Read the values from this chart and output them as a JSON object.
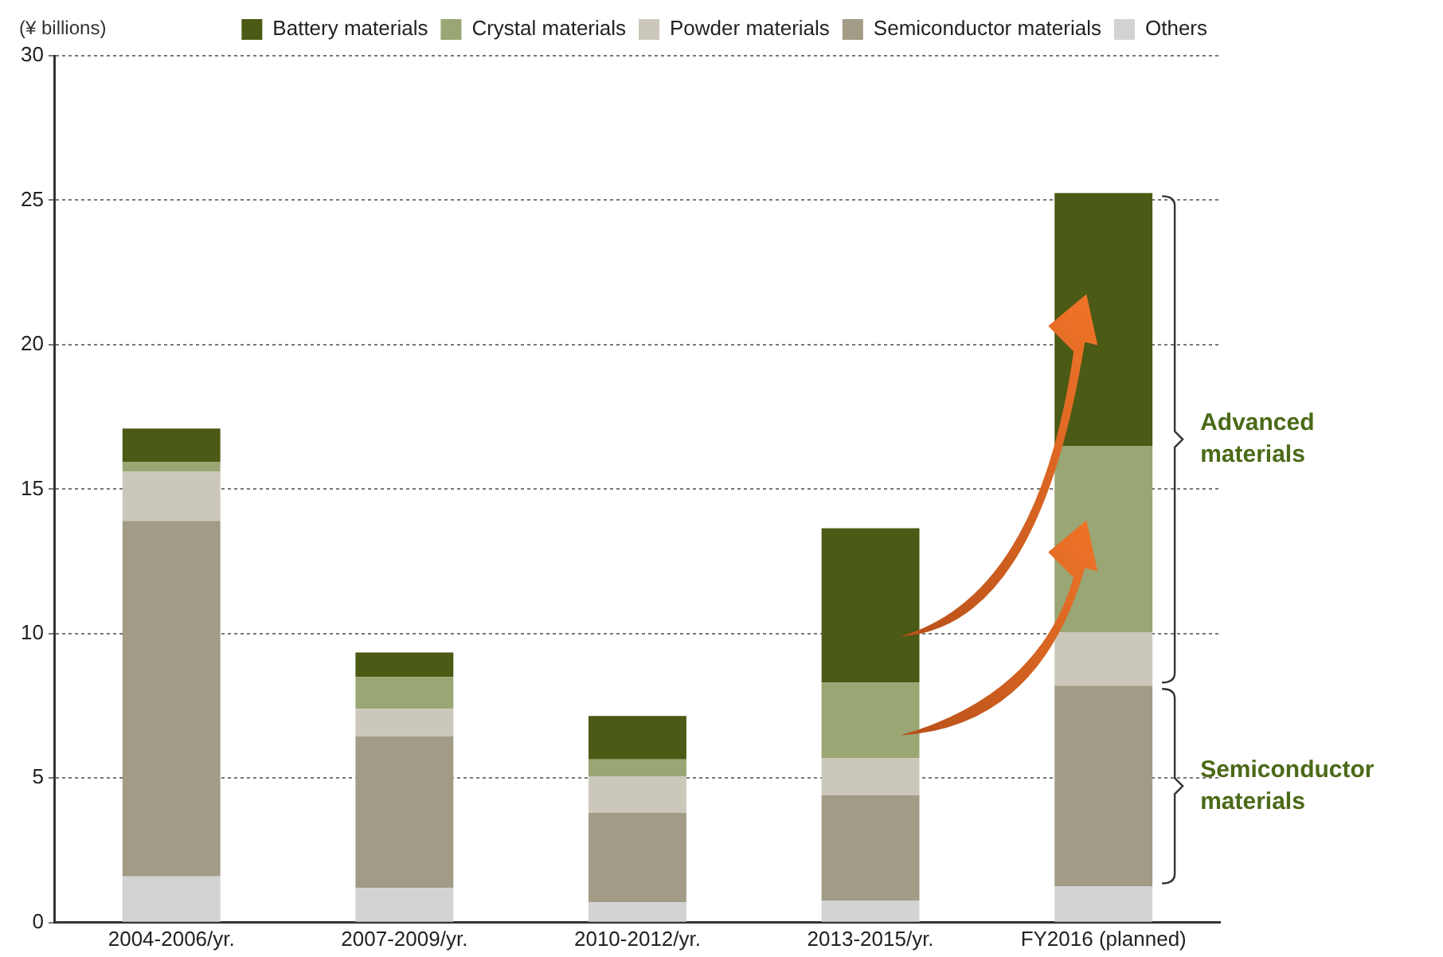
{
  "chart_data": {
    "type": "bar",
    "stacked": true,
    "ylabel": "(¥ billions)",
    "categories": [
      "2004-2006/yr.",
      "2007-2009/yr.",
      "2010-2012/yr.",
      "2013-2015/yr.",
      "FY2016 (planned)"
    ],
    "series": [
      {
        "name": "Others",
        "color": "#d2d3d5",
        "values": [
          1.6,
          1.2,
          0.7,
          0.75,
          1.25
        ]
      },
      {
        "name": "Semiconductor materials",
        "color": "#a29b86",
        "values": [
          12.3,
          5.25,
          3.1,
          3.65,
          6.95
        ]
      },
      {
        "name": "Powder materials",
        "color": "#cbc7ba",
        "values": [
          1.7,
          0.95,
          1.25,
          1.3,
          1.85
        ]
      },
      {
        "name": "Crystal materials",
        "color": "#9aa673",
        "values": [
          0.35,
          1.1,
          0.6,
          2.6,
          6.45
        ]
      },
      {
        "name": "Battery materials",
        "color": "#4b5a14",
        "values": [
          1.15,
          0.85,
          1.5,
          5.35,
          8.75
        ]
      }
    ],
    "ylim": [
      0,
      30
    ],
    "yticks": [
      0,
      5,
      10,
      15,
      20,
      25,
      30
    ],
    "grid": "y",
    "legend": "top right",
    "annotations": [
      "Advanced materials",
      "Semiconductor materials"
    ]
  }
}
